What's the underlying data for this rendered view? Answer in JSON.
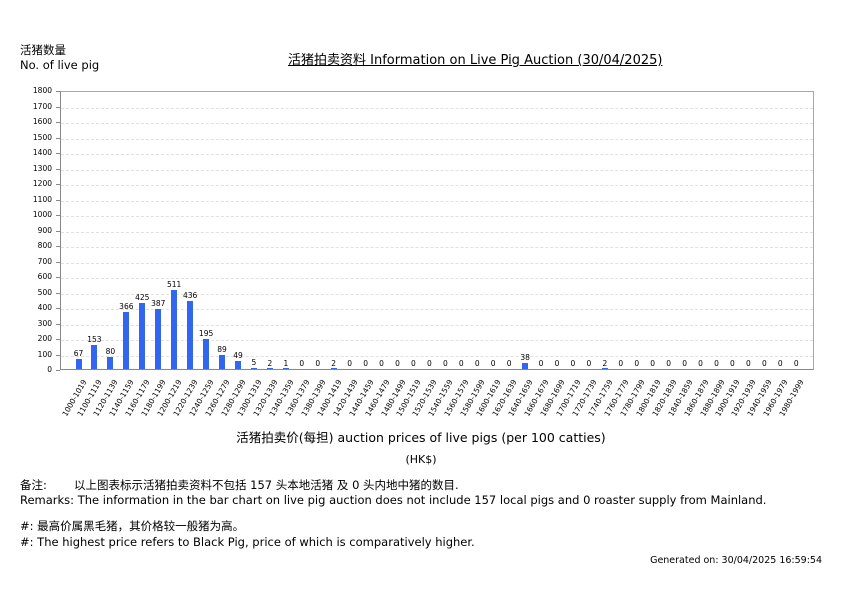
{
  "header": {
    "ylabel_cn": "活猪数量",
    "ylabel_en": "No. of live pig",
    "title": "活猪拍卖资料 Information on Live Pig Auction (30/04/2025)"
  },
  "axis": {
    "xtitle": "活猪拍卖价(每担) auction prices of live pigs (per 100 catties)",
    "xunit": "(HK$)"
  },
  "remarks": {
    "cn_label": "备注:",
    "cn_text": "以上图表标示活猪拍卖资料不包括 157 头本地活猪 及 0 头内地中猪的数目.",
    "en_text": "Remarks: The information in the bar chart on live pig auction does not include 157 local pigs and 0 roaster supply from Mainland.",
    "note_cn": "#: 最高价属黑毛猪，其价格较一般猪为高。",
    "note_en": "#: The highest price refers to Black Pig, price of which is comparatively higher."
  },
  "footer": {
    "generated": "Generated on: 30/04/2025 16:59:54"
  },
  "colors": {
    "bar": "#3366ee",
    "grid": "#e0e0e0",
    "axis": "#888888"
  },
  "chart_data": {
    "type": "bar",
    "title": "活猪拍卖资料 Information on Live Pig Auction (30/04/2025)",
    "xlabel": "活猪拍卖价(每担) auction prices of live pigs (per 100 catties) (HK$)",
    "ylabel": "活猪数量 No. of live pig",
    "ylim": [
      0,
      1800
    ],
    "yticks": [
      0,
      100,
      200,
      300,
      400,
      500,
      600,
      700,
      800,
      900,
      1000,
      1100,
      1200,
      1300,
      1400,
      1500,
      1600,
      1700,
      1800
    ],
    "grid": true,
    "categories": [
      "1000-1019",
      "1100-1119",
      "1120-1139",
      "1140-1159",
      "1160-1179",
      "1180-1199",
      "1200-1219",
      "1220-1239",
      "1240-1259",
      "1260-1279",
      "1280-1299",
      "1300-1319",
      "1320-1339",
      "1340-1359",
      "1360-1379",
      "1380-1399",
      "1400-1419",
      "1420-1439",
      "1440-1459",
      "1460-1479",
      "1480-1499",
      "1500-1519",
      "1520-1539",
      "1540-1559",
      "1560-1579",
      "1580-1599",
      "1600-1619",
      "1620-1639",
      "1640-1659",
      "1660-1679",
      "1680-1699",
      "1700-1719",
      "1720-1739",
      "1740-1759",
      "1760-1779",
      "1780-1799",
      "1800-1819",
      "1820-1839",
      "1840-1859",
      "1860-1879",
      "1880-1899",
      "1900-1919",
      "1920-1939",
      "1940-1959",
      "1960-1979",
      "1980-1999"
    ],
    "values": [
      67,
      153,
      80,
      366,
      425,
      387,
      511,
      436,
      195,
      89,
      49,
      5,
      2,
      1,
      0,
      0,
      2,
      0,
      0,
      0,
      0,
      0,
      0,
      0,
      0,
      0,
      0,
      0,
      38,
      0,
      0,
      0,
      0,
      2,
      0,
      0,
      0,
      0,
      0,
      0,
      0,
      0,
      0,
      0,
      0,
      0
    ]
  }
}
